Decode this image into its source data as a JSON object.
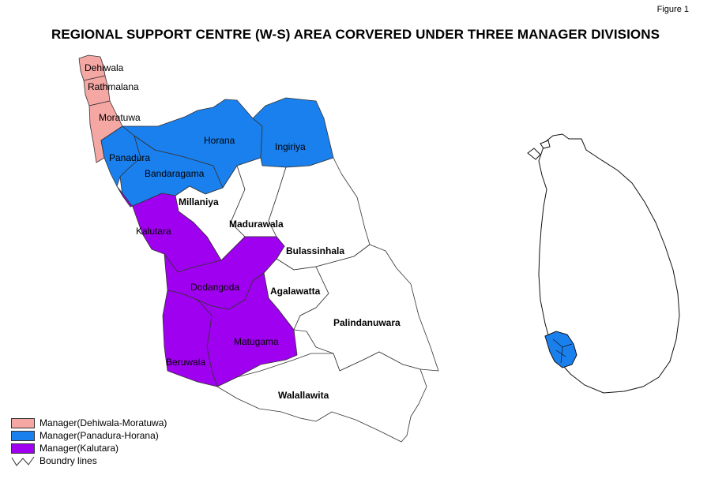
{
  "figure_label": "Figure 1",
  "title": "REGIONAL SUPPORT CENTRE (W-S) AREA CORVERED UNDER THREE MANAGER DIVISIONS",
  "colors": {
    "dehiwala_moratuwa": "#f4a7a3",
    "panadura_horana": "#1a80ee",
    "kalutara": "#a000f0",
    "other": "#ffffff",
    "boundary": "#333333"
  },
  "regions": {
    "dehiwala": "Dehiwala",
    "rathmalana": "Rathmalana",
    "moratuwa": "Moratuwa",
    "panadura": "Panadura",
    "bandaragama": "Bandaragama",
    "horana": "Horana",
    "ingiriya": "Ingiriya",
    "millaniya": "Millaniya",
    "madurawala": "Madurawala",
    "bulassinhala": "Bulassinhala",
    "kalutara": "Kalutara",
    "dodangoda": "Dodangoda",
    "agalawatta": "Agalawatta",
    "palindanuwara": "Palindanuwara",
    "matugama": "Matugama",
    "beruwala": "Beruwala",
    "walallawita": "Walallawita"
  },
  "legend": [
    {
      "label": "Manager(Dehiwala-Moratuwa)",
      "color": "#f4a7a3",
      "icon": "swatch"
    },
    {
      "label": "Manager(Panadura-Horana)",
      "color": "#1a80ee",
      "icon": "swatch"
    },
    {
      "label": "Manager(Kalutara)",
      "color": "#a000f0",
      "icon": "swatch"
    },
    {
      "label": "Boundry lines",
      "color": "#333333",
      "icon": "boundary-line-icon"
    }
  ]
}
